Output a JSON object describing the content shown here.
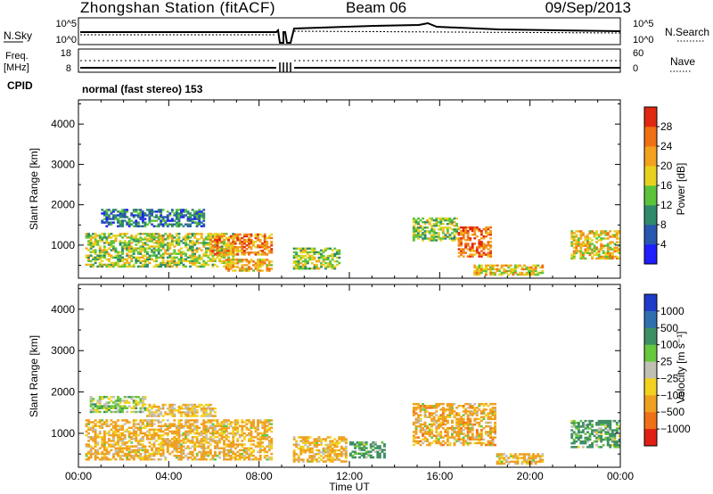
{
  "header": {
    "station": "Zhongshan Station (fitACF)",
    "beam": "Beam 06",
    "date": "09/Sep/2013"
  },
  "top_panels": {
    "noise": {
      "left_label": "N.Sky",
      "right_label": "N.Search",
      "left_ticks": [
        "10^5",
        "10^0"
      ],
      "right_ticks": [
        "10^5",
        "10^0"
      ]
    },
    "freq": {
      "left_label_1": "Freq.",
      "left_label_2": "[MHz]",
      "right_label": "Nave",
      "left_ticks": [
        "18",
        "8"
      ],
      "right_ticks": [
        "60",
        "0"
      ]
    },
    "cpid_label": "CPID",
    "cpid_text": "normal (fast stereo) 153"
  },
  "colorbars": {
    "power": {
      "title": "Power [dB]",
      "labels": [
        "4",
        "8",
        "12",
        "16",
        "20",
        "24",
        "28"
      ],
      "colors": [
        "#1e1eff",
        "#2857b0",
        "#2e8a6a",
        "#5cc43a",
        "#e6d21e",
        "#f2a21e",
        "#f07014",
        "#e02810"
      ]
    },
    "velocity": {
      "title": "Velocity [m s⁻¹]",
      "labels": [
        "1000",
        "500",
        "100",
        "25",
        "−25",
        "−100",
        "−500",
        "−1000"
      ],
      "colors": [
        "#1e3cc8",
        "#2f6fb0",
        "#3f8f64",
        "#66c83c",
        "#c0c0b4",
        "#f2d21e",
        "#f0a020",
        "#f07018",
        "#e02014"
      ]
    }
  },
  "axes": {
    "ylabel": "Slant Range [km]",
    "yticks": [
      "1000",
      "2000",
      "3000",
      "4000"
    ],
    "xlabel": "Time UT",
    "xticks": [
      "00:00",
      "04:00",
      "08:00",
      "12:00",
      "16:00",
      "20:00",
      "00:00"
    ]
  },
  "chart_data": [
    {
      "type": "heatmap",
      "name": "power",
      "x_range_hours": [
        0,
        24
      ],
      "y_range_km": [
        180,
        4600
      ],
      "zlim": [
        0,
        30
      ],
      "blobs": [
        {
          "t": [
            0.3,
            6.8
          ],
          "r": [
            450,
            1300
          ],
          "v": 15
        },
        {
          "t": [
            1.0,
            5.5
          ],
          "r": [
            1450,
            1900
          ],
          "v": 8
        },
        {
          "t": [
            5.8,
            8.5
          ],
          "r": [
            750,
            1250
          ],
          "v": 22
        },
        {
          "t": [
            6.5,
            8.5
          ],
          "r": [
            350,
            650
          ],
          "v": 20
        },
        {
          "t": [
            9.5,
            11.5
          ],
          "r": [
            400,
            900
          ],
          "v": 14
        },
        {
          "t": [
            14.8,
            16.8
          ],
          "r": [
            1100,
            1650
          ],
          "v": 14
        },
        {
          "t": [
            16.8,
            18.3
          ],
          "r": [
            700,
            1450
          ],
          "v": 24
        },
        {
          "t": [
            17.5,
            20.6
          ],
          "r": [
            250,
            500
          ],
          "v": 18
        },
        {
          "t": [
            21.8,
            24.0
          ],
          "r": [
            650,
            1350
          ],
          "v": 18
        }
      ]
    },
    {
      "type": "heatmap",
      "name": "velocity",
      "x_range_hours": [
        0,
        24
      ],
      "y_range_km": [
        180,
        4600
      ],
      "zlim": [
        -1000,
        1000
      ],
      "blobs": [
        {
          "t": [
            0.3,
            8.5
          ],
          "r": [
            350,
            1300
          ],
          "v": -150
        },
        {
          "t": [
            0.5,
            3.0
          ],
          "r": [
            1500,
            1900
          ],
          "v": 20
        },
        {
          "t": [
            3.0,
            6.0
          ],
          "r": [
            1400,
            1700
          ],
          "v": -80
        },
        {
          "t": [
            9.5,
            11.8
          ],
          "r": [
            300,
            900
          ],
          "v": -120
        },
        {
          "t": [
            12.0,
            13.5
          ],
          "r": [
            400,
            800
          ],
          "v": 150
        },
        {
          "t": [
            14.8,
            18.5
          ],
          "r": [
            700,
            1700
          ],
          "v": -250
        },
        {
          "t": [
            18.5,
            20.6
          ],
          "r": [
            250,
            500
          ],
          "v": -120
        },
        {
          "t": [
            21.8,
            24.0
          ],
          "r": [
            650,
            1300
          ],
          "v": 180
        }
      ]
    }
  ]
}
